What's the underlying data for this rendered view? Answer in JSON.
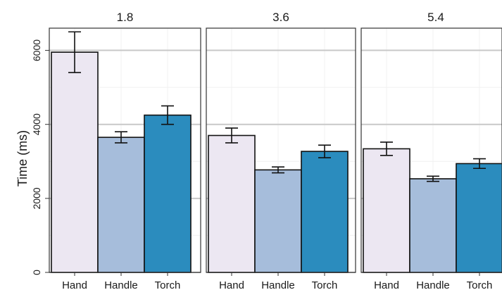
{
  "chart_data": {
    "type": "bar",
    "ylabel": "Time (ms)",
    "ylim": [
      0,
      6600
    ],
    "y_ticks": [
      0,
      2000,
      4000,
      6000
    ],
    "y_tick_labels": [
      "0",
      "2000",
      "4000",
      "6000"
    ],
    "categories": [
      "Hand",
      "Handle",
      "Torch"
    ],
    "category_colors": [
      "#ece7f2",
      "#a6bddb",
      "#2b8cbe"
    ],
    "grid": true,
    "legend": "none",
    "facets": [
      {
        "title": "1.8",
        "values": [
          5950,
          3650,
          4250
        ],
        "errors": [
          550,
          150,
          250
        ]
      },
      {
        "title": "3.6",
        "values": [
          3700,
          2770,
          3270
        ],
        "errors": [
          200,
          80,
          170
        ]
      },
      {
        "title": "5.4",
        "values": [
          3340,
          2530,
          2940
        ],
        "errors": [
          180,
          70,
          130
        ]
      }
    ]
  }
}
